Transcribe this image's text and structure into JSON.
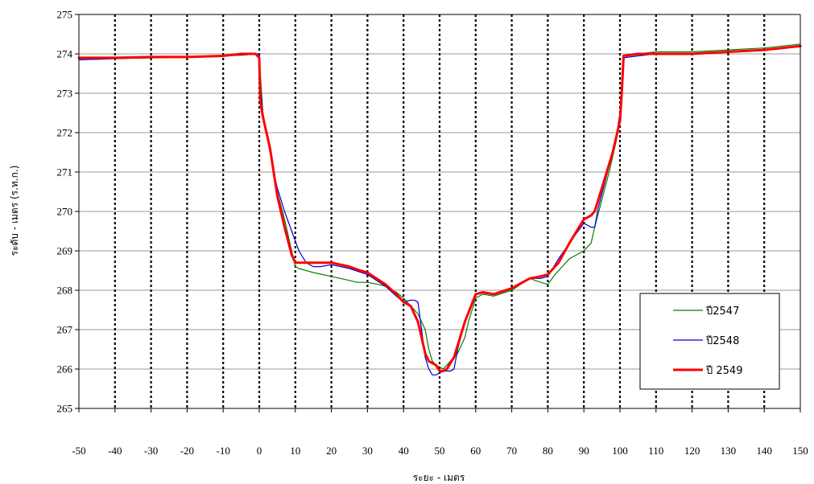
{
  "chart_data": {
    "type": "line",
    "xlabel": "ระยะ - เมตร",
    "ylabel": "ระดับ - เมตร (ร.ท.ก.)",
    "xlim": [
      -50,
      150
    ],
    "ylim": [
      265,
      275
    ],
    "xticks": [
      -50,
      -40,
      -30,
      -20,
      -10,
      0,
      10,
      20,
      30,
      40,
      50,
      60,
      70,
      80,
      90,
      100,
      110,
      120,
      130,
      140,
      150
    ],
    "yticks": [
      265,
      266,
      267,
      268,
      269,
      270,
      271,
      272,
      273,
      274,
      275
    ],
    "horizontal_grid": "solid gray",
    "vertical_grid": "dotted black",
    "legend_position": "bottom-right",
    "series": [
      {
        "name": "ปี2547",
        "color": "#008000",
        "x": [
          -50,
          -40,
          -30,
          -20,
          -10,
          -5,
          0,
          0.3,
          1,
          2,
          3,
          4,
          5,
          7,
          9,
          10,
          11,
          13,
          15,
          20,
          25,
          27,
          30,
          33,
          35,
          38,
          40,
          42,
          44,
          46,
          47,
          48,
          49,
          50,
          51,
          52,
          53,
          55,
          57,
          58,
          60,
          62,
          65,
          70,
          75,
          78,
          80,
          82,
          84,
          86,
          88,
          90,
          92,
          93,
          95,
          97,
          99,
          100,
          100.5,
          101,
          105,
          110,
          120,
          130,
          140,
          150
        ],
        "y": [
          273.85,
          273.88,
          273.9,
          273.92,
          273.95,
          273.97,
          274.0,
          273.5,
          272.5,
          272.0,
          271.5,
          271.0,
          270.5,
          269.8,
          269.0,
          268.6,
          268.55,
          268.5,
          268.45,
          268.35,
          268.25,
          268.2,
          268.2,
          268.15,
          268.1,
          267.95,
          267.8,
          267.6,
          267.4,
          267.0,
          266.5,
          266.2,
          266.1,
          266.05,
          266.0,
          266.1,
          266.2,
          266.4,
          266.8,
          267.2,
          267.8,
          267.9,
          267.85,
          268.0,
          268.3,
          268.2,
          268.15,
          268.4,
          268.6,
          268.8,
          268.9,
          269.0,
          269.2,
          269.6,
          270.3,
          271.0,
          271.8,
          272.3,
          273.0,
          273.95,
          274.0,
          274.05,
          274.05,
          274.1,
          274.15,
          274.25
        ]
      },
      {
        "name": "ปี2548",
        "color": "#0000cc",
        "x": [
          -50,
          -40,
          -30,
          -20,
          -10,
          -5,
          0,
          0.3,
          1,
          2,
          3,
          4,
          5,
          7,
          9,
          11,
          13,
          15,
          17,
          20,
          25,
          30,
          35,
          38,
          40,
          42,
          43,
          44,
          45,
          46,
          47,
          48,
          49,
          50,
          51,
          52,
          53,
          54,
          55,
          57,
          60,
          62,
          65,
          70,
          75,
          78,
          80,
          83,
          86,
          90,
          92,
          93,
          94,
          96,
          98,
          99,
          100,
          100.5,
          101,
          105,
          110,
          120,
          130,
          140,
          150
        ],
        "y": [
          273.85,
          273.88,
          273.9,
          273.92,
          273.95,
          273.97,
          274.0,
          273.2,
          272.5,
          272.0,
          271.5,
          271.0,
          270.6,
          270.0,
          269.5,
          269.0,
          268.7,
          268.6,
          268.6,
          268.65,
          268.55,
          268.4,
          268.1,
          267.85,
          267.7,
          267.75,
          267.75,
          267.7,
          267.0,
          266.3,
          266.0,
          265.85,
          265.85,
          265.9,
          265.95,
          265.95,
          265.95,
          266.0,
          266.5,
          267.2,
          267.9,
          267.95,
          267.9,
          268.05,
          268.3,
          268.3,
          268.35,
          268.8,
          269.2,
          269.7,
          269.6,
          269.6,
          270.1,
          270.8,
          271.5,
          271.9,
          272.5,
          273.0,
          273.9,
          273.95,
          274.0,
          274.0,
          274.05,
          274.1,
          274.2
        ]
      },
      {
        "name": "ปี 2549",
        "color": "#ff0000",
        "x": [
          -50,
          -40,
          -30,
          -20,
          -10,
          -5,
          -1,
          0,
          0.3,
          1,
          2,
          3,
          4,
          5,
          7,
          9,
          10,
          12,
          15,
          18,
          20,
          25,
          28,
          30,
          35,
          38,
          40,
          42,
          43,
          44,
          45,
          46,
          47,
          48,
          49,
          50,
          51,
          52,
          53,
          54,
          55,
          57,
          60,
          62,
          65,
          70,
          75,
          78,
          80,
          83,
          86,
          90,
          92,
          93,
          94,
          96,
          98,
          99,
          100,
          100.5,
          101,
          105,
          110,
          120,
          130,
          140,
          150
        ],
        "y": [
          273.9,
          273.9,
          273.92,
          273.92,
          273.95,
          274.0,
          274.0,
          273.9,
          272.8,
          272.4,
          272.0,
          271.6,
          271.0,
          270.4,
          269.6,
          268.9,
          268.7,
          268.7,
          268.7,
          268.7,
          268.7,
          268.6,
          268.5,
          268.45,
          268.15,
          267.9,
          267.7,
          267.6,
          267.4,
          267.2,
          266.8,
          266.4,
          266.2,
          266.15,
          266.1,
          265.95,
          265.95,
          266.0,
          266.15,
          266.3,
          266.6,
          267.2,
          267.9,
          267.95,
          267.9,
          268.05,
          268.3,
          268.35,
          268.4,
          268.7,
          269.2,
          269.8,
          269.9,
          270.0,
          270.3,
          270.9,
          271.5,
          271.9,
          272.3,
          273.0,
          273.95,
          274.0,
          274.0,
          274.0,
          274.05,
          274.1,
          274.2
        ]
      }
    ]
  }
}
